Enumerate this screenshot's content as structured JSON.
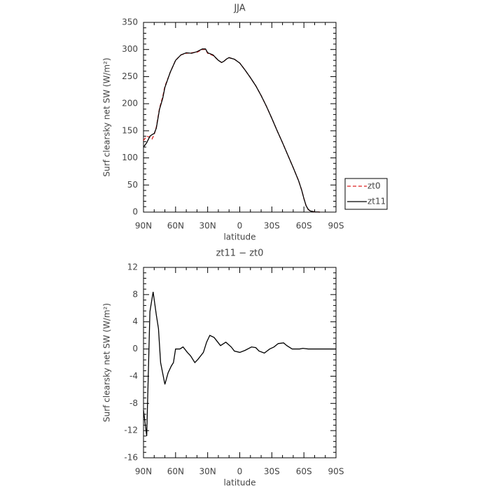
{
  "chart_data": [
    {
      "type": "line",
      "title": "JJA",
      "xlabel": "latitude",
      "ylabel": "Surf clearsky net SW (W/m²)",
      "x": [
        90,
        87,
        84,
        82,
        80,
        78,
        75,
        72,
        70,
        65,
        60,
        55,
        50,
        45,
        40,
        35,
        32,
        30,
        25,
        20,
        17,
        15,
        12,
        10,
        5,
        0,
        -5,
        -10,
        -15,
        -20,
        -25,
        -30,
        -35,
        -40,
        -45,
        -50,
        -55,
        -58,
        -60,
        -62,
        -64,
        -66,
        -70,
        -75
      ],
      "series": [
        {
          "name": "zt0",
          "color": "#dd2222",
          "linestyle": "dashed",
          "values": [
            132,
            140,
            138,
            135,
            143,
            157,
            192,
            213,
            232,
            258,
            280,
            290,
            293,
            294,
            295,
            300,
            300,
            293,
            289,
            280,
            276,
            278,
            283,
            285,
            282,
            275,
            262,
            248,
            233,
            215,
            195,
            173,
            150,
            128,
            105,
            82,
            58,
            40,
            25,
            12,
            5,
            2,
            0.5,
            0
          ]
        },
        {
          "name": "zt11",
          "color": "#000000",
          "linestyle": "solid",
          "values": [
            120,
            128,
            140,
            143,
            145,
            155,
            190,
            210,
            230,
            258,
            280,
            290,
            294,
            293,
            296,
            301,
            301,
            294,
            290,
            280,
            276,
            278,
            283,
            285,
            282,
            275,
            262,
            248,
            233,
            215,
            195,
            173,
            150,
            128,
            105,
            82,
            58,
            40,
            25,
            12,
            5,
            2,
            0.5,
            0
          ]
        }
      ],
      "xlim": [
        90,
        -90
      ],
      "xticks": [
        {
          "value": 90,
          "label": "90N"
        },
        {
          "value": 60,
          "label": "60N"
        },
        {
          "value": 30,
          "label": "30N"
        },
        0,
        {
          "value": -30,
          "label": "30S"
        },
        {
          "value": -60,
          "label": "60S"
        },
        {
          "value": -90,
          "label": "90S"
        }
      ],
      "ylim": [
        0,
        350
      ],
      "yticks": [
        0,
        50,
        100,
        150,
        200,
        250,
        300,
        350
      ],
      "legend": "right"
    },
    {
      "type": "line",
      "title": "zt11 − zt0",
      "xlabel": "latitude",
      "ylabel": "Surf clearsky net SW (W/m²)",
      "x": [
        90,
        87,
        84,
        81,
        78,
        76,
        74,
        70,
        67,
        64,
        62,
        60,
        56,
        53,
        49,
        46,
        42,
        39,
        34,
        31,
        28,
        24,
        18,
        13,
        8,
        5,
        0,
        -5,
        -11,
        -15,
        -18,
        -23,
        -28,
        -32,
        -36,
        -41,
        -44,
        -49,
        -56,
        -59,
        -64,
        -90
      ],
      "series": [
        {
          "color": "#000000",
          "linestyle": "solid",
          "values": [
            -9,
            -12.8,
            5.5,
            8.4,
            5,
            3,
            -2,
            -5.2,
            -3.5,
            -2.5,
            -2,
            0,
            0,
            0.3,
            -0.5,
            -1,
            -2,
            -1.5,
            -0.5,
            1,
            2,
            1.7,
            0.5,
            1,
            0.3,
            -0.3,
            -0.5,
            -0.2,
            0.3,
            0.2,
            -0.3,
            -0.6,
            0,
            0.3,
            0.8,
            0.9,
            0.5,
            0,
            0,
            0.1,
            0,
            0
          ]
        }
      ],
      "xlim": [
        90,
        -90
      ],
      "xticks": [
        {
          "value": 90,
          "label": "90N"
        },
        {
          "value": 60,
          "label": "60N"
        },
        {
          "value": 30,
          "label": "30N"
        },
        0,
        {
          "value": -30,
          "label": "30S"
        },
        {
          "value": -60,
          "label": "60S"
        },
        {
          "value": -90,
          "label": "90S"
        }
      ],
      "ylim": [
        -16,
        12
      ],
      "yticks": [
        -16,
        -12,
        -8,
        -4,
        0,
        4,
        8,
        12
      ]
    }
  ]
}
